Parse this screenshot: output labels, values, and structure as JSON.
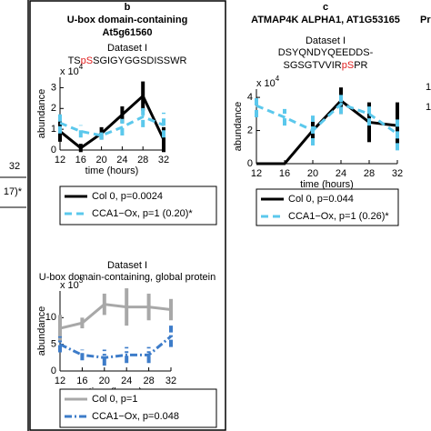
{
  "chart_data": [
    {
      "type": "line",
      "panel_label": "b",
      "title": "U-box domain-containing",
      "subtitle": "At5g61560",
      "dataset": "Dataset I",
      "sequence": [
        [
          {
            "text": "TS",
            "color": "#000000"
          },
          {
            "text": "pS",
            "color": "#e02020"
          },
          {
            "text": "SGIGYGGSDISSWR",
            "color": "#000000"
          }
        ]
      ],
      "xlabel": "time (hours)",
      "ylabel": "abundance",
      "scale_label": "x 10",
      "scale_exponent": "4",
      "x": [
        12,
        16,
        20,
        24,
        28,
        32
      ],
      "xlim": [
        12,
        32
      ],
      "xticks": [
        12,
        16,
        20,
        24,
        28,
        32
      ],
      "ylim": [
        0,
        3.5
      ],
      "yticks": [
        0,
        1,
        2,
        3
      ],
      "series": [
        {
          "name": "Col 0, p=0.0024",
          "color": "#000000",
          "dash": "solid",
          "values": [
            0.9,
            0.1,
            0.8,
            1.7,
            2.6,
            0.5
          ],
          "errors": [
            0.5,
            0.2,
            0.3,
            0.4,
            0.7,
            0.6
          ]
        },
        {
          "name": "CCA1−Ox, p=1 (0.20)*",
          "color": "#5bc8ec",
          "dash": "dash",
          "values": [
            1.3,
            0.9,
            0.7,
            1.1,
            1.6,
            1.2
          ],
          "errors": [
            0.5,
            0.3,
            0.2,
            0.4,
            0.5,
            0.6
          ]
        }
      ]
    },
    {
      "type": "line",
      "dataset": "Dataset I",
      "title": "U-box domain-containing, global protein",
      "xlabel": "time (hours)",
      "ylabel": "abundance",
      "scale_label": "x 10",
      "scale_exponent": "3",
      "x": [
        12,
        16,
        20,
        24,
        28,
        32
      ],
      "xlim": [
        12,
        32
      ],
      "xticks": [
        12,
        16,
        20,
        24,
        28,
        32
      ],
      "ylim": [
        0,
        15
      ],
      "yticks": [
        0,
        5,
        10
      ],
      "series": [
        {
          "name": "Col 0, p=1",
          "color": "#a8a8a8",
          "dash": "solid",
          "values": [
            8,
            9,
            12.5,
            12,
            12,
            11.5
          ],
          "errors": [
            2.5,
            1,
            2,
            3.5,
            2.5,
            2
          ]
        },
        {
          "name": "CCA1−Ox, p=0.048",
          "color": "#3d7cc9",
          "dash": "dashdot",
          "values": [
            5,
            3,
            2.5,
            3,
            3,
            6.5
          ],
          "errors": [
            1.5,
            1,
            1.5,
            1.5,
            1.5,
            2
          ]
        }
      ]
    },
    {
      "type": "line",
      "panel_label": "c",
      "title": "ATMAP4K ALPHA1, AT1G53165",
      "dataset": "Dataset I",
      "sequence": [
        [
          {
            "text": "DSYQNDYQEEDDS-",
            "color": "#000000"
          }
        ],
        [
          {
            "text": "SGSGTVVIR",
            "color": "#000000"
          },
          {
            "text": "pS",
            "color": "#e02020"
          },
          {
            "text": "PR",
            "color": "#000000"
          }
        ]
      ],
      "xlabel": "time (hours)",
      "ylabel": "abundance",
      "scale_label": "x 10",
      "scale_exponent": "4",
      "x": [
        12,
        16,
        20,
        24,
        28,
        32
      ],
      "xlim": [
        12,
        32
      ],
      "xticks": [
        12,
        16,
        20,
        24,
        28,
        32
      ],
      "ylim": [
        0,
        4.5
      ],
      "yticks": [
        0,
        2,
        4
      ],
      "series": [
        {
          "name": "Col 0, p=0.044",
          "color": "#000000",
          "dash": "solid",
          "values": [
            0,
            0,
            2,
            3.8,
            2.5,
            2.3
          ],
          "errors": [
            0,
            0,
            0.6,
            0.8,
            1.2,
            1.4
          ]
        },
        {
          "name": "CCA1−Ox, p=1 (0.26)*",
          "color": "#5bc8ec",
          "dash": "dash",
          "values": [
            3.5,
            2.8,
            2,
            3.6,
            3,
            1.8
          ],
          "errors": [
            0.7,
            0.5,
            0.9,
            0.6,
            0.7,
            1
          ]
        }
      ]
    }
  ],
  "fragments": {
    "left": [
      "32",
      "17)*"
    ],
    "right": [
      "Prote",
      "1",
      "1"
    ]
  }
}
